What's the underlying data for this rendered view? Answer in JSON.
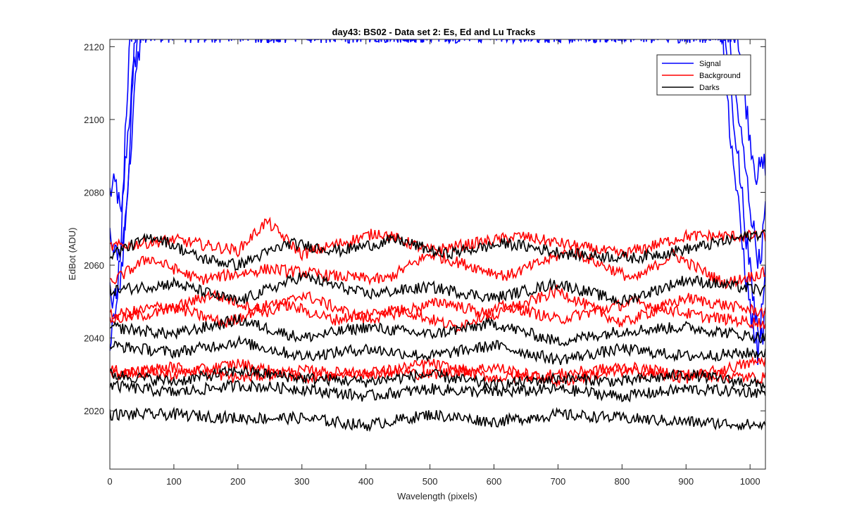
{
  "colors": {
    "signal": "#0000ff",
    "background": "#ff0000",
    "darks": "#000000",
    "axis": "#262626"
  },
  "chart_data": {
    "type": "line",
    "title": "day43: BS02 - Data set 2: Es, Ed and Lu Tracks",
    "xlabel": "Wavelength (pixels)",
    "ylabel": "EdBot (ADU)",
    "xlim": [
      0,
      1024
    ],
    "ylim": [
      2004,
      2122
    ],
    "xticks": [
      0,
      100,
      200,
      300,
      400,
      500,
      600,
      700,
      800,
      900,
      1000
    ],
    "yticks": [
      2020,
      2040,
      2060,
      2080,
      2100,
      2120
    ],
    "grid": false,
    "legend_position": "top-right",
    "legend": [
      "Signal",
      "Background",
      "Darks"
    ],
    "series": [
      {
        "name": "Signal",
        "color": "#0000ff",
        "tracks": [
          {
            "x": [
              0,
              10,
              18,
              25,
              35,
              45,
              55,
              65,
              980,
              990,
              1000,
              1010,
              1024
            ],
            "y": [
              2080,
              2082,
              2072,
              2090,
              2110,
              2125,
              2125,
              2125,
              2125,
              2110,
              2095,
              2085,
              2088
            ]
          },
          {
            "x": [
              0,
              10,
              20,
              30,
              40,
              50,
              60,
              965,
              975,
              990,
              1005,
              1015,
              1024
            ],
            "y": [
              2068,
              2062,
              2066,
              2085,
              2110,
              2125,
              2125,
              2125,
              2110,
              2090,
              2070,
              2060,
              2075
            ]
          },
          {
            "x": [
              0,
              10,
              20,
              30,
              40,
              960,
              975,
              990,
              1005,
              1015,
              1024
            ],
            "y": [
              2052,
              2050,
              2060,
              2090,
              2125,
              2125,
              2100,
              2075,
              2050,
              2040,
              2062
            ]
          },
          {
            "x": [
              0,
              8,
              16,
              24,
              32,
              955,
              970,
              985,
              1000,
              1012,
              1024
            ],
            "y": [
              2040,
              2046,
              2062,
              2095,
              2125,
              2125,
              2095,
              2070,
              2048,
              2036,
              2045
            ]
          }
        ]
      },
      {
        "name": "Background",
        "color": "#ff0000",
        "tracks": [
          {
            "x": [
              0,
              100,
              200,
              245,
              300,
              420,
              500,
              640,
              800,
              900,
              1024
            ],
            "y": [
              2065,
              2067,
              2064,
              2072,
              2063,
              2069,
              2064,
              2068,
              2063,
              2068,
              2068
            ]
          },
          {
            "x": [
              0,
              60,
              140,
              250,
              350,
              430,
              500,
              620,
              720,
              820,
              880,
              960,
              1024
            ],
            "y": [
              2055,
              2062,
              2056,
              2059,
              2057,
              2056,
              2063,
              2057,
              2064,
              2056,
              2063,
              2055,
              2058
            ]
          },
          {
            "x": [
              0,
              80,
              160,
              250,
              300,
              400,
              520,
              600,
              700,
              800,
              900,
              1024
            ],
            "y": [
              2045,
              2047,
              2052,
              2047,
              2052,
              2045,
              2050,
              2046,
              2053,
              2044,
              2051,
              2047
            ]
          },
          {
            "x": [
              0,
              90,
              180,
              260,
              350,
              450,
              540,
              620,
              700,
              820,
              920,
              1024
            ],
            "y": [
              2046,
              2049,
              2044,
              2050,
              2045,
              2048,
              2043,
              2049,
              2045,
              2050,
              2046,
              2044
            ]
          },
          {
            "x": [
              0,
              100,
              200,
              300,
              400,
              500,
              600,
              700,
              800,
              900,
              1024
            ],
            "y": [
              2031,
              2030,
              2033,
              2029,
              2031,
              2030,
              2032,
              2028,
              2031,
              2029,
              2034
            ]
          },
          {
            "x": [
              0,
              100,
              200,
              300,
              400,
              500,
              600,
              700,
              800,
              900,
              1024
            ],
            "y": [
              2030,
              2032,
              2029,
              2031,
              2030,
              2033,
              2029,
              2030,
              2032,
              2030,
              2029
            ]
          }
        ]
      },
      {
        "name": "Darks",
        "color": "#000000",
        "tracks": [
          {
            "x": [
              0,
              70,
              140,
              200,
              280,
              360,
              450,
              520,
              620,
              720,
              820,
              920,
              1024
            ],
            "y": [
              2063,
              2068,
              2062,
              2060,
              2066,
              2064,
              2067,
              2063,
              2066,
              2063,
              2062,
              2065,
              2069
            ]
          },
          {
            "x": [
              0,
              100,
              200,
              300,
              400,
              500,
              600,
              700,
              800,
              900,
              1024
            ],
            "y": [
              2053,
              2055,
              2050,
              2057,
              2052,
              2054,
              2051,
              2055,
              2050,
              2056,
              2053
            ]
          },
          {
            "x": [
              0,
              100,
              200,
              300,
              400,
              500,
              600,
              700,
              800,
              900,
              1024
            ],
            "y": [
              2043,
              2041,
              2045,
              2040,
              2043,
              2041,
              2044,
              2039,
              2042,
              2043,
              2040
            ]
          },
          {
            "x": [
              0,
              100,
              200,
              300,
              400,
              500,
              600,
              700,
              800,
              900,
              1024
            ],
            "y": [
              2038,
              2036,
              2039,
              2035,
              2037,
              2035,
              2038,
              2034,
              2037,
              2035,
              2036
            ]
          },
          {
            "x": [
              0,
              100,
              200,
              300,
              400,
              500,
              600,
              700,
              800,
              900,
              1024
            ],
            "y": [
              2030,
              2028,
              2031,
              2029,
              2028,
              2030,
              2027,
              2029,
              2028,
              2030,
              2027
            ]
          },
          {
            "x": [
              0,
              100,
              200,
              300,
              400,
              500,
              600,
              700,
              800,
              900,
              1024
            ],
            "y": [
              2027,
              2025,
              2027,
              2026,
              2024,
              2026,
              2025,
              2026,
              2024,
              2026,
              2025
            ]
          },
          {
            "x": [
              0,
              100,
              200,
              300,
              400,
              500,
              600,
              700,
              800,
              900,
              1024
            ],
            "y": [
              2019,
              2019,
              2018,
              2018,
              2016,
              2019,
              2017,
              2019,
              2018,
              2017,
              2016
            ]
          }
        ]
      }
    ]
  }
}
